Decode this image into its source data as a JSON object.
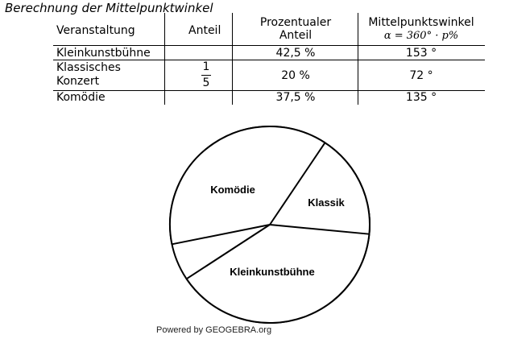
{
  "title": "Berechnung der Mittelpunktwinkel",
  "table": {
    "headers": {
      "col1": "Veranstaltung",
      "col2": "Anteil",
      "col3_line1": "Prozentualer",
      "col3_line2": "Anteil",
      "col4_line1": "Mittelpunktswinkel",
      "col4_line2": "α = 360° · p%"
    },
    "rows": [
      {
        "name_line1": "Kleinkunstbühne",
        "name_line2": "",
        "anteil_num": "",
        "anteil_den": "",
        "percent": "42,5 %",
        "angle": "153 °"
      },
      {
        "name_line1": "Klassisches",
        "name_line2": "Konzert",
        "anteil_num": "1",
        "anteil_den": "5",
        "percent": "20 %",
        "angle": "72 °"
      },
      {
        "name_line1": "Komödie",
        "name_line2": "",
        "anteil_num": "",
        "anteil_den": "",
        "percent": "37,5 %",
        "angle": "135 °"
      }
    ]
  },
  "chart_data": {
    "type": "pie",
    "title": "",
    "slices": [
      {
        "label": "Kleinkunstbühne",
        "angle_deg": 153,
        "percent": 42.5
      },
      {
        "label": "Klassik",
        "angle_deg": 72,
        "percent": 20
      },
      {
        "label": "Komödie",
        "angle_deg": 135,
        "percent": 37.5
      }
    ],
    "fill": "#ffffff",
    "stroke": "#000000"
  },
  "footer": "Powered by GEOGEBRA.org"
}
